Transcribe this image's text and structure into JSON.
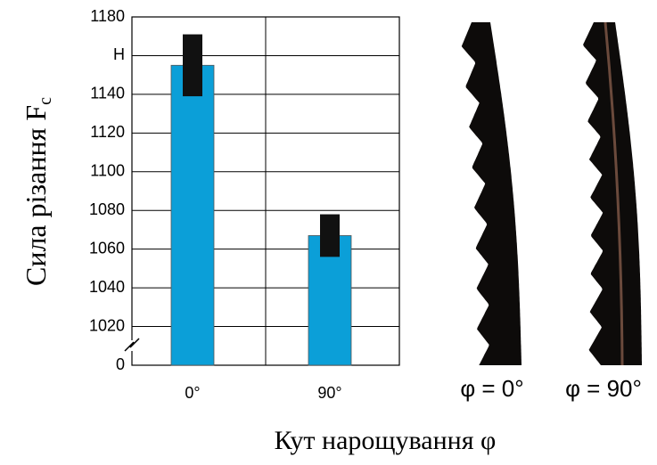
{
  "chart_data": {
    "type": "bar",
    "y_label": "Сила різання F",
    "y_label_subscript": "c",
    "x_label": "Кут нарощування φ",
    "categories": [
      "0°",
      "90°"
    ],
    "values": [
      1155,
      1067
    ],
    "errors": [
      16,
      11
    ],
    "color": "#0b9fd8",
    "error_color": "#111111",
    "ylim": [
      0,
      1180
    ],
    "axis_break": true,
    "yticks": [
      0,
      1020,
      1040,
      1060,
      1080,
      1100,
      1120,
      1140,
      {
        "value": 1160,
        "label": "H"
      },
      1180
    ],
    "grid": true
  },
  "images": [
    {
      "caption": "φ = 0°"
    },
    {
      "caption": "φ = 90°"
    }
  ]
}
